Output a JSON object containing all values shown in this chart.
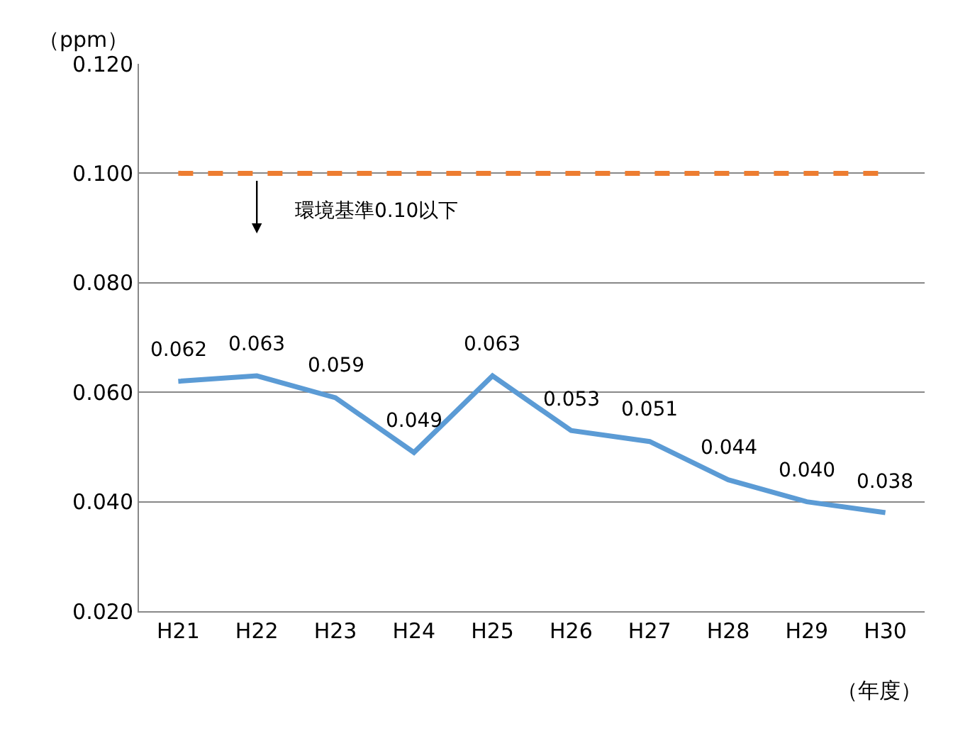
{
  "chart_data": {
    "type": "line",
    "xlabel": "（年度）",
    "ylabel": "（ppm）",
    "categories": [
      "H21",
      "H22",
      "H23",
      "H24",
      "H25",
      "H26",
      "H27",
      "H28",
      "H29",
      "H30"
    ],
    "series": [
      {
        "color": "#5b9bd5",
        "values": [
          0.062,
          0.063,
          0.059,
          0.049,
          0.063,
          0.053,
          0.051,
          0.044,
          0.04,
          0.038
        ],
        "value_labels": [
          "0.062",
          "0.063",
          "0.059",
          "0.049",
          "0.063",
          "0.053",
          "0.051",
          "0.044",
          "0.040",
          "0.038"
        ]
      }
    ],
    "ylim": [
      0.02,
      0.12
    ],
    "yticks": [
      {
        "value": 0.02,
        "label": "0.020"
      },
      {
        "value": 0.04,
        "label": "0.040"
      },
      {
        "value": 0.06,
        "label": "0.060"
      },
      {
        "value": 0.08,
        "label": "0.080"
      },
      {
        "value": 0.1,
        "label": "0.100"
      },
      {
        "value": 0.12,
        "label": "0.120"
      }
    ],
    "ref_lines": [
      {
        "axis": "y",
        "value": 0.1,
        "color": "#ed7d31",
        "line_style": "dashed"
      }
    ],
    "annotations": [
      {
        "text": "環境基準0.10以下",
        "x": "H22",
        "y": 0.1
      }
    ],
    "grid": "y",
    "marker": "none",
    "line_style": "solid"
  }
}
